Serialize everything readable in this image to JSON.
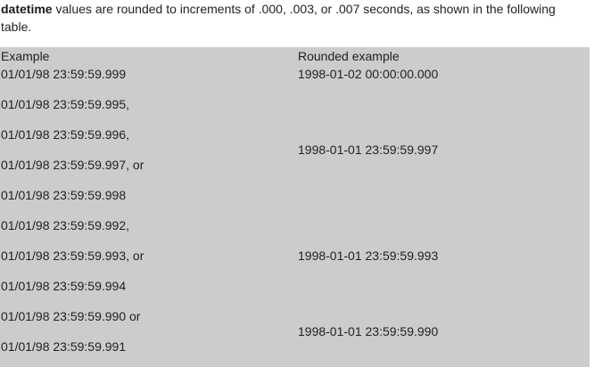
{
  "intro": {
    "term": "datetime",
    "text": " values are rounded to increments of .000, .003, or .007 seconds, as shown in the following table."
  },
  "table": {
    "headers": {
      "example": "Example",
      "rounded": "Rounded example"
    },
    "examples": [
      "01/01/98 23:59:59.999",
      "01/01/98 23:59:59.995,",
      "01/01/98 23:59:59.996,",
      "01/01/98 23:59:59.997, or",
      "01/01/98 23:59:59.998",
      "01/01/98 23:59:59.992,",
      "01/01/98 23:59:59.993, or",
      "01/01/98 23:59:59.994",
      "01/01/98 23:59:59.990 or",
      "01/01/98 23:59:59.991"
    ],
    "rounded": [
      "1998-01-02 00:00:00.000",
      "1998-01-01 23:59:59.997",
      "1998-01-01 23:59:59.993",
      "1998-01-01 23:59:59.990"
    ]
  }
}
